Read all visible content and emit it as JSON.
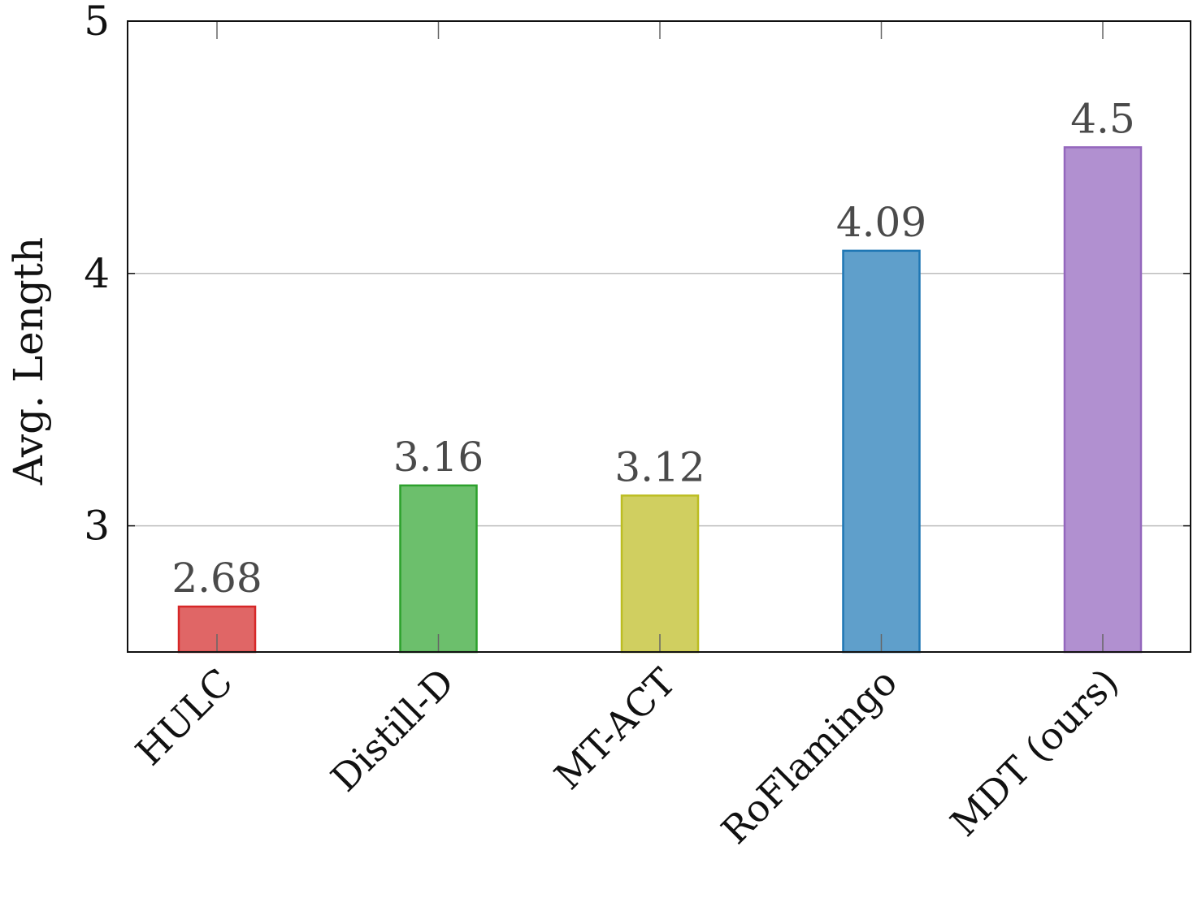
{
  "chart_data": {
    "type": "bar",
    "categories": [
      "HULC",
      "Distill-D",
      "MT-ACT",
      "RoFlamingo",
      "MDT (ours)"
    ],
    "values": [
      2.68,
      3.16,
      3.12,
      4.09,
      4.5
    ],
    "value_labels": [
      "2.68",
      "3.16",
      "3.12",
      "4.09",
      "4.5"
    ],
    "colors": [
      {
        "fill": "#e06666",
        "stroke": "#d62728"
      },
      {
        "fill": "#6cbf6c",
        "stroke": "#2ca02c"
      },
      {
        "fill": "#d0cf60",
        "stroke": "#bcbd22"
      },
      {
        "fill": "#5f9fcb",
        "stroke": "#1f77b4"
      },
      {
        "fill": "#b190d0",
        "stroke": "#9467bd"
      }
    ],
    "title": "",
    "xlabel": "",
    "ylabel": "Avg. Length",
    "ylim": [
      2.5,
      5
    ],
    "yticks": [
      3,
      4,
      5
    ],
    "ytick_labels": [
      "3",
      "4",
      "5"
    ],
    "grid": "horizontal",
    "grid_color": "#bdbdbd",
    "axis_color": "#111111"
  }
}
